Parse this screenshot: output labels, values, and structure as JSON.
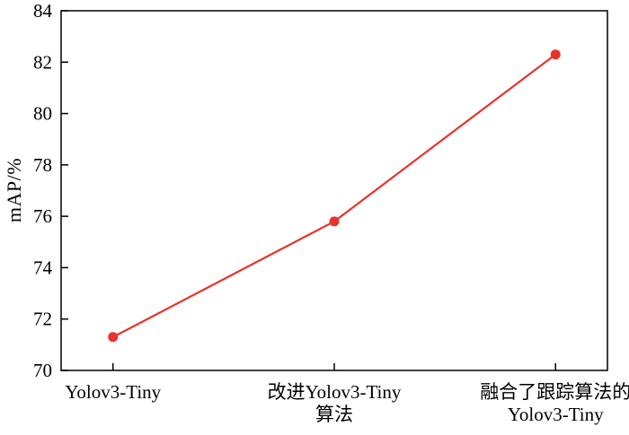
{
  "chart_data": {
    "type": "line",
    "categories": [
      "Yolov3-Tiny",
      "改进Yolov3-Tiny\n算法",
      "融合了跟踪算法的\nYolov3-Tiny"
    ],
    "values": [
      71.3,
      75.8,
      82.3
    ],
    "title": "",
    "xlabel": "",
    "ylabel": "mAP/%",
    "ylim": [
      70,
      84
    ],
    "yticks": [
      70,
      72,
      74,
      76,
      78,
      80,
      82,
      84
    ],
    "grid": false,
    "legend": null,
    "line_color": "#e8332b",
    "marker": "circle",
    "axis_color": "#000000"
  }
}
